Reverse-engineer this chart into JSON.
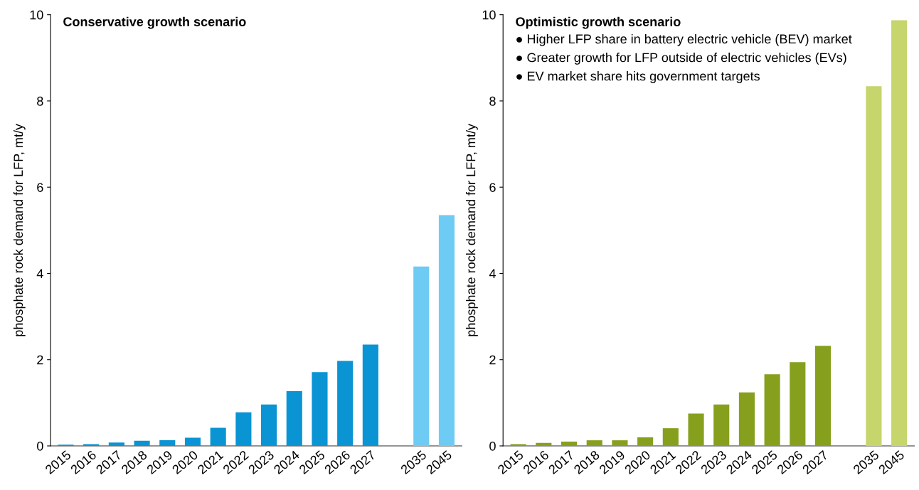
{
  "chart_data": [
    {
      "type": "bar",
      "title": "Conservative growth scenario",
      "ylabel": "phosphate rock demand for LFP, mt/y",
      "categories": [
        "2015",
        "2016",
        "2017",
        "2018",
        "2019",
        "2020",
        "2021",
        "2022",
        "2023",
        "2024",
        "2025",
        "2026",
        "2027",
        null,
        "2035",
        "2045"
      ],
      "values": [
        0.03,
        0.04,
        0.08,
        0.12,
        0.13,
        0.19,
        0.42,
        0.78,
        0.96,
        1.27,
        1.71,
        1.97,
        2.35,
        null,
        4.16,
        5.35
      ],
      "colors": [
        "#0a94d3",
        "#0a94d3",
        "#0a94d3",
        "#0a94d3",
        "#0a94d3",
        "#0a94d3",
        "#0a94d3",
        "#0a94d3",
        "#0a94d3",
        "#0a94d3",
        "#0a94d3",
        "#0a94d3",
        "#0a94d3",
        "#0a94d3",
        "#6ecbf3",
        "#6ecbf3"
      ],
      "ylim": [
        0,
        10
      ],
      "yticks": [
        0,
        2,
        4,
        6,
        8,
        10
      ],
      "grid": false,
      "legend": false
    },
    {
      "type": "bar",
      "title": "Optimistic growth scenario",
      "ylabel": "phosphate rock demand for LFP, mt/y",
      "annotations": [
        "● Higher LFP share in battery electric vehicle (BEV) market",
        "● Greater growth for LFP outside of electric vehicles (EVs)",
        "● EV market share hits government targets"
      ],
      "categories": [
        "2015",
        "2016",
        "2017",
        "2018",
        "2019",
        "2020",
        "2021",
        "2022",
        "2023",
        "2024",
        "2025",
        "2026",
        "2027",
        null,
        "2035",
        "2045"
      ],
      "values": [
        0.04,
        0.07,
        0.1,
        0.13,
        0.13,
        0.2,
        0.41,
        0.75,
        0.96,
        1.24,
        1.66,
        1.94,
        2.32,
        null,
        8.34,
        9.87
      ],
      "colors": [
        "#86a01e",
        "#86a01e",
        "#86a01e",
        "#86a01e",
        "#86a01e",
        "#86a01e",
        "#86a01e",
        "#86a01e",
        "#86a01e",
        "#86a01e",
        "#86a01e",
        "#86a01e",
        "#86a01e",
        "#86a01e",
        "#c6d56c",
        "#c6d56c"
      ],
      "ylim": [
        0,
        10
      ],
      "yticks": [
        0,
        2,
        4,
        6,
        8,
        10
      ],
      "grid": false,
      "legend": false
    }
  ]
}
